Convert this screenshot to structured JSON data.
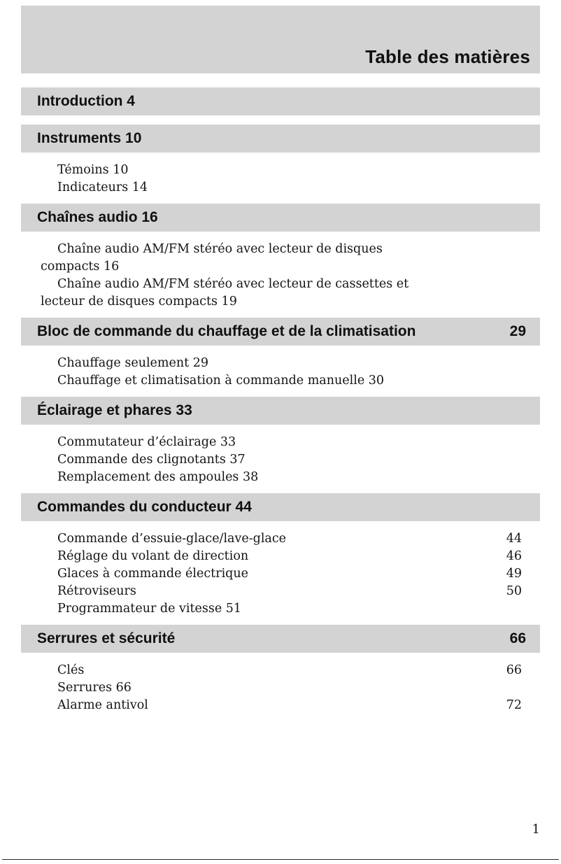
{
  "colors": {
    "bar_gray": "#d3d3d3",
    "text": "#141414"
  },
  "header": {
    "title": "Table des matières"
  },
  "footer": {
    "page_number": "1"
  },
  "sections": [
    {
      "title": "Introduction 4",
      "page": "",
      "entries": []
    },
    {
      "title": "Instruments 10",
      "page": "",
      "entries": [
        {
          "lines": [
            "Témoins 10"
          ],
          "page": ""
        },
        {
          "lines": [
            "Indicateurs 14"
          ],
          "page": ""
        }
      ]
    },
    {
      "title": "Chaînes audio 16",
      "page": "",
      "entries": [
        {
          "lines": [
            "Chaîne audio AM/FM stéréo avec lecteur de disques",
            "compacts 16"
          ],
          "page": ""
        },
        {
          "lines": [
            "Chaîne audio AM/FM stéréo avec lecteur de cassettes et",
            "lecteur de disques compacts 19"
          ],
          "page": ""
        }
      ]
    },
    {
      "title": "Bloc de commande du chauffage et de la climatisation",
      "page": "29",
      "entries": [
        {
          "lines": [
            "Chauffage seulement 29"
          ],
          "page": ""
        },
        {
          "lines": [
            "Chauffage et climatisation à commande manuelle 30"
          ],
          "page": ""
        }
      ]
    },
    {
      "title": "Éclairage et phares 33",
      "page": "",
      "entries": [
        {
          "lines": [
            "Commutateur d’éclairage 33"
          ],
          "page": ""
        },
        {
          "lines": [
            "Commande des clignotants 37"
          ],
          "page": ""
        },
        {
          "lines": [
            "Remplacement des ampoules 38"
          ],
          "page": ""
        }
      ]
    },
    {
      "title": "Commandes du conducteur 44",
      "page": "",
      "entries": [
        {
          "lines": [
            "Commande d’essuie-glace/lave-glace"
          ],
          "page": "44"
        },
        {
          "lines": [
            "Réglage du volant de direction"
          ],
          "page": "46"
        },
        {
          "lines": [
            "Glaces à commande électrique"
          ],
          "page": "49"
        },
        {
          "lines": [
            "Rétroviseurs"
          ],
          "page": "50"
        },
        {
          "lines": [
            "Programmateur de vitesse 51"
          ],
          "page": ""
        }
      ]
    },
    {
      "title": "Serrures et sécurité",
      "page": "66",
      "entries": [
        {
          "lines": [
            "Clés"
          ],
          "page": "66"
        },
        {
          "lines": [
            "Serrures 66"
          ],
          "page": ""
        },
        {
          "lines": [
            "Alarme antivol"
          ],
          "page": "72"
        }
      ]
    }
  ]
}
